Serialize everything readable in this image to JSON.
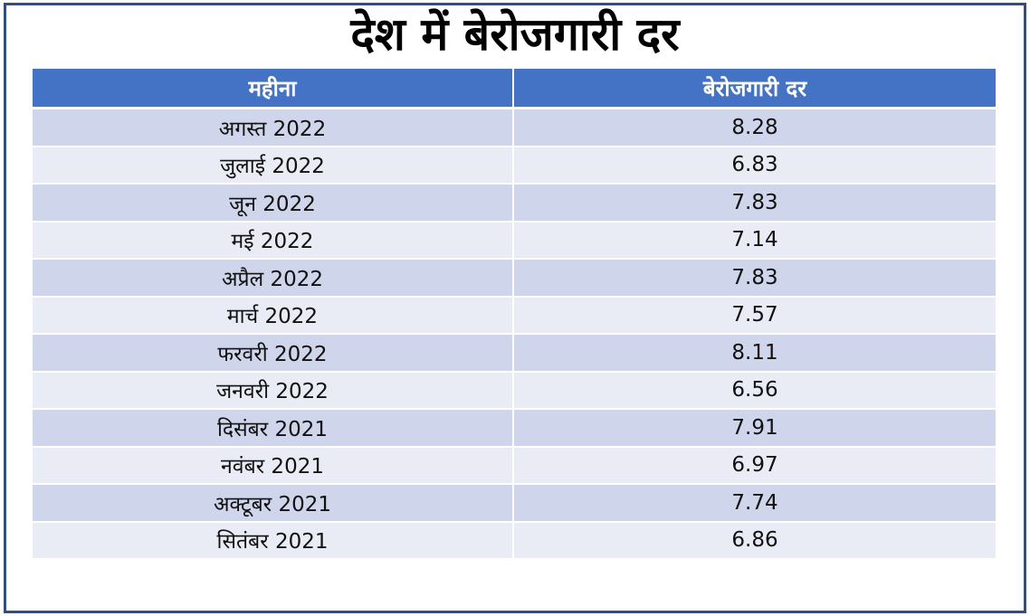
{
  "title": "देश में बेरोजगारी दर",
  "table": {
    "headers": [
      "महीना",
      "बेरोजगारी दर"
    ],
    "rows": [
      {
        "month": "अगस्त 2022",
        "rate": "8.28"
      },
      {
        "month": "जुलाई 2022",
        "rate": "6.83"
      },
      {
        "month": "जून 2022",
        "rate": "7.83"
      },
      {
        "month": "मई 2022",
        "rate": "7.14"
      },
      {
        "month": "अप्रैल 2022",
        "rate": "7.83"
      },
      {
        "month": "मार्च 2022",
        "rate": "7.57"
      },
      {
        "month": "फरवरी 2022",
        "rate": "8.11"
      },
      {
        "month": "जनवरी 2022",
        "rate": "6.56"
      },
      {
        "month": "दिसंबर 2021",
        "rate": "7.91"
      },
      {
        "month": "नवंबर 2021",
        "rate": "6.97"
      },
      {
        "month": "अक्टूबर 2021",
        "rate": "7.74"
      },
      {
        "month": "सितंबर 2021",
        "rate": "6.86"
      }
    ]
  },
  "colors": {
    "header_bg": "#4472c4",
    "row_odd": "#cfd5ea",
    "row_even": "#e9ebf5",
    "frame_border": "#2f4f7f"
  },
  "chart_data": {
    "type": "table",
    "title": "देश में बेरोजगारी दर",
    "columns": [
      "महीना",
      "बेरोजगारी दर"
    ],
    "categories": [
      "अगस्त 2022",
      "जुलाई 2022",
      "जून 2022",
      "मई 2022",
      "अप्रैल 2022",
      "मार्च 2022",
      "फरवरी 2022",
      "जनवरी 2022",
      "दिसंबर 2021",
      "नवंबर 2021",
      "अक्टूबर 2021",
      "सितंबर 2021"
    ],
    "values": [
      8.28,
      6.83,
      7.83,
      7.14,
      7.83,
      7.57,
      8.11,
      6.56,
      7.91,
      6.97,
      7.74,
      6.86
    ]
  }
}
